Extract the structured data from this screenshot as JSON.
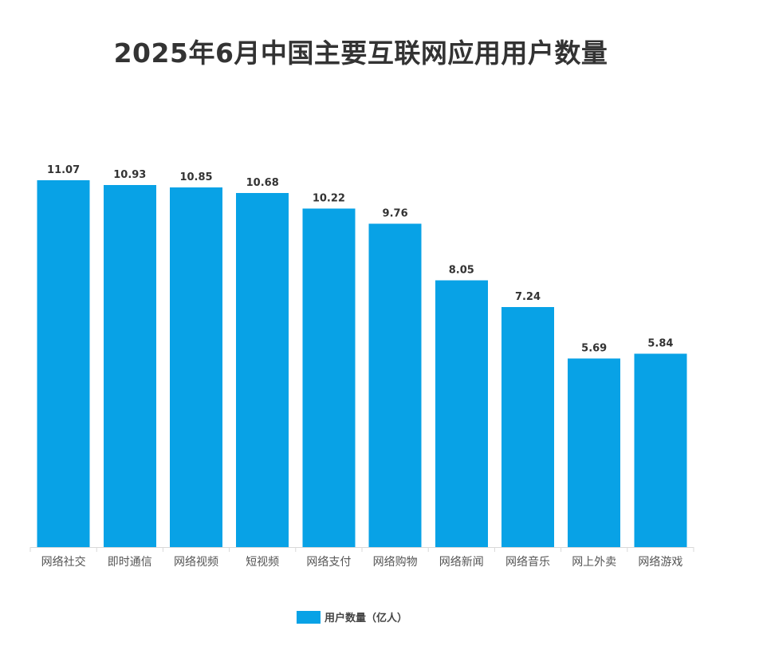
{
  "chart_data": {
    "type": "bar",
    "title": "2025年6月中国主要互联网应用用户数量",
    "categories": [
      "网络社交",
      "即时通信",
      "网络视频",
      "短视频",
      "网络支付",
      "网络购物",
      "网络新闻",
      "网络音乐",
      "网上外卖",
      "网络游戏"
    ],
    "series": [
      {
        "name": "用户数量（亿人）",
        "values": [
          11.07,
          10.93,
          10.85,
          10.68,
          10.22,
          9.76,
          8.05,
          7.24,
          5.69,
          5.84
        ],
        "labels": [
          "11.07",
          "10.93",
          "10.85",
          "10.68",
          "10.22",
          "9.76",
          "8.05",
          "7.24",
          "5.69",
          "5.84"
        ]
      }
    ],
    "xlabel": "",
    "ylabel": "",
    "ylim": [
      0,
      11.07
    ],
    "grid": false,
    "legend": "bottom-center",
    "colors": {
      "bar": "#08a2e6",
      "axis": "#d9d9d9"
    }
  }
}
